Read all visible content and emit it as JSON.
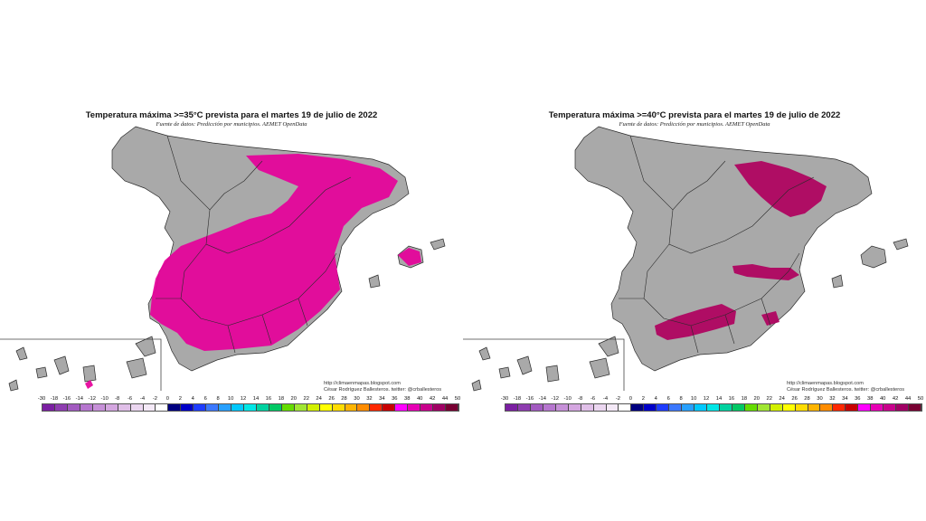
{
  "maps": [
    {
      "title": "Temperatura máxima >=35°C prevista para el martes 19 de julio de 2022",
      "subtitle": "Fuente de datos: Predicción por municipios. AEMET OpenData",
      "credit_url": "http://climaenmapas.blogspot.com",
      "credit_author": "César Rodríguez Ballesteros. twitter: @crballesteros",
      "threshold": 35,
      "highlight_color": "#e6009a"
    },
    {
      "title": "Temperatura máxima >=40°C prevista para el martes 19 de julio de 2022",
      "subtitle": "Fuente de datos: Predicción por municipios. AEMET OpenData",
      "credit_url": "http://climaenmapas.blogspot.com",
      "credit_author": "César Rodríguez Ballesteros. twitter: @crballesteros",
      "threshold": 40,
      "highlight_color": "#b0005e"
    }
  ],
  "legend": {
    "ticks": [
      "-30",
      "-18",
      "-16",
      "-14",
      "-12",
      "-10",
      "-8",
      "-6",
      "-4",
      "-2",
      "0",
      "2",
      "4",
      "6",
      "8",
      "10",
      "12",
      "14",
      "16",
      "18",
      "20",
      "22",
      "24",
      "26",
      "28",
      "30",
      "32",
      "34",
      "36",
      "38",
      "40",
      "42",
      "44",
      "50"
    ],
    "colors": [
      "#7b1fa2",
      "#8e3db0",
      "#a25ac0",
      "#b676cf",
      "#c690d8",
      "#d4a6e0",
      "#e0bfe8",
      "#ebd6f0",
      "#f4e9f7",
      "#ffffff",
      "#000080",
      "#0000c8",
      "#1e3cff",
      "#3c78ff",
      "#28a0ff",
      "#00c8ff",
      "#00e6e6",
      "#00d2a0",
      "#00c864",
      "#64dc00",
      "#a0e632",
      "#d2f000",
      "#ffff00",
      "#ffdc00",
      "#ffb400",
      "#ff8c00",
      "#ff2800",
      "#c80000",
      "#ff00ff",
      "#e600b4",
      "#c8008c",
      "#a00064",
      "#780032"
    ],
    "land_color": "#a9a9a9",
    "border_color": "#2a2a2a"
  }
}
